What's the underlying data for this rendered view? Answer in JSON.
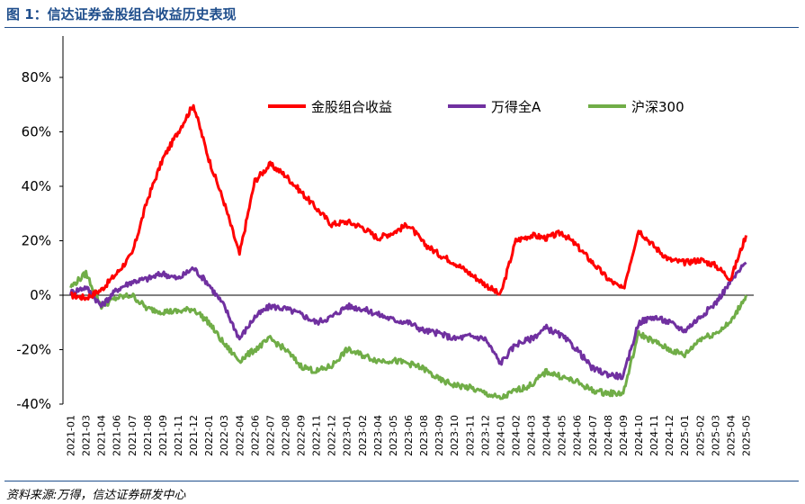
{
  "title": "图 1：信达证券金股组合收益历史表现",
  "source": "资料来源:万得，信达证券研发中心",
  "chart_data": {
    "type": "line",
    "title": "",
    "xlabel": "",
    "ylabel": "",
    "ylim": [
      -0.4,
      0.8
    ],
    "ytick_labels": [
      "80%",
      "60%",
      "40%",
      "20%",
      "0%",
      "-20%",
      "-40%"
    ],
    "categories": [
      "2021-01",
      "2021-03",
      "2021-04",
      "2021-06",
      "2021-07",
      "2021-08",
      "2021-09",
      "2021-11",
      "2021-12",
      "2022-01",
      "2022-03",
      "2022-04",
      "2022-06",
      "2022-07",
      "2022-08",
      "2022-09",
      "2022-11",
      "2022-12",
      "2023-01",
      "2023-02",
      "2023-04",
      "2023-05",
      "2023-06",
      "2023-08",
      "2023-09",
      "2023-10",
      "2023-11",
      "2023-12",
      "2024-01",
      "2024-02",
      "2024-03",
      "2024-04",
      "2024-05",
      "2024-06",
      "2024-07",
      "2024-08",
      "2024-09",
      "2024-10",
      "2024-11",
      "2024-12",
      "2025-01",
      "2025-02",
      "2025-03",
      "2025-04",
      "2025-05"
    ],
    "legend_position": "top",
    "series": [
      {
        "name": "金股组合收益",
        "color": "#FF0000",
        "values": [
          0.0,
          -0.01,
          0.02,
          0.08,
          0.15,
          0.35,
          0.5,
          0.6,
          0.7,
          0.5,
          0.34,
          0.15,
          0.42,
          0.48,
          0.44,
          0.38,
          0.32,
          0.26,
          0.27,
          0.25,
          0.21,
          0.23,
          0.26,
          0.19,
          0.15,
          0.12,
          0.08,
          0.04,
          0.0,
          0.2,
          0.22,
          0.21,
          0.23,
          0.18,
          0.12,
          0.06,
          0.02,
          0.24,
          0.18,
          0.13,
          0.12,
          0.13,
          0.11,
          0.06,
          0.22
        ]
      },
      {
        "name": "万得全A",
        "color": "#7030A0",
        "values": [
          0.01,
          0.03,
          -0.04,
          0.02,
          0.05,
          0.06,
          0.08,
          0.06,
          0.1,
          0.04,
          -0.04,
          -0.16,
          -0.08,
          -0.04,
          -0.05,
          -0.07,
          -0.1,
          -0.08,
          -0.04,
          -0.05,
          -0.07,
          -0.09,
          -0.1,
          -0.13,
          -0.14,
          -0.16,
          -0.15,
          -0.16,
          -0.25,
          -0.18,
          -0.16,
          -0.12,
          -0.15,
          -0.2,
          -0.27,
          -0.29,
          -0.3,
          -0.1,
          -0.08,
          -0.1,
          -0.13,
          -0.08,
          -0.03,
          0.05,
          0.12
        ]
      },
      {
        "name": "沪深300",
        "color": "#70AD47",
        "values": [
          0.03,
          0.08,
          -0.04,
          -0.01,
          0.0,
          -0.05,
          -0.06,
          -0.06,
          -0.05,
          -0.1,
          -0.18,
          -0.24,
          -0.2,
          -0.16,
          -0.2,
          -0.26,
          -0.28,
          -0.26,
          -0.2,
          -0.22,
          -0.24,
          -0.24,
          -0.25,
          -0.27,
          -0.31,
          -0.33,
          -0.34,
          -0.36,
          -0.38,
          -0.35,
          -0.33,
          -0.28,
          -0.3,
          -0.32,
          -0.35,
          -0.36,
          -0.36,
          -0.14,
          -0.17,
          -0.2,
          -0.22,
          -0.16,
          -0.14,
          -0.1,
          0.0
        ]
      }
    ]
  }
}
